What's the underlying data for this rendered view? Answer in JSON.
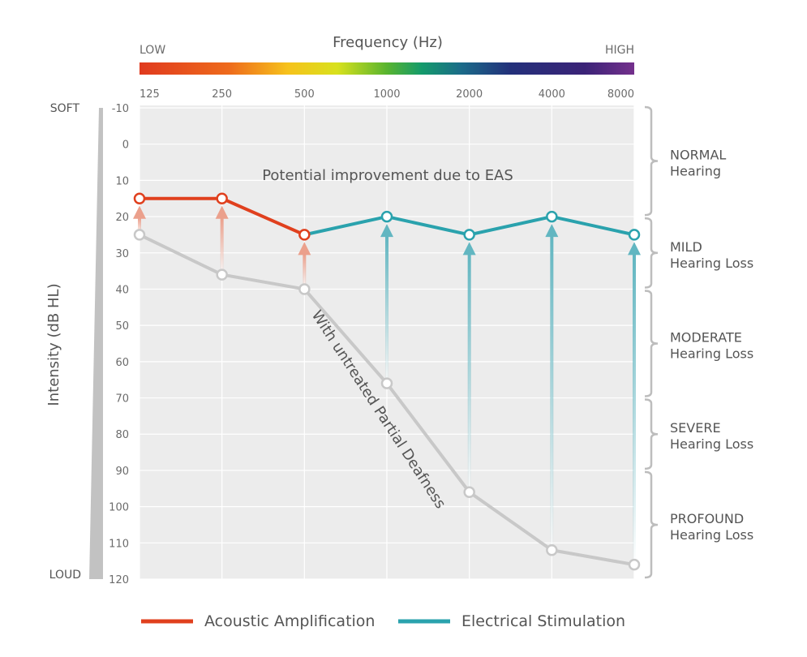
{
  "chart_data": {
    "type": "line",
    "title": "Frequency (Hz)",
    "frequency_bar": {
      "low_label": "LOW",
      "high_label": "HIGH"
    },
    "x_categories": [
      "125",
      "250",
      "500",
      "1000",
      "2000",
      "4000",
      "8000"
    ],
    "y_ticks": [
      "-10",
      "0",
      "10",
      "20",
      "30",
      "40",
      "50",
      "60",
      "70",
      "80",
      "90",
      "100",
      "110",
      "120"
    ],
    "ylim": [
      -10,
      120
    ],
    "y_inverted": true,
    "ylabel": "Intensity (dB HL)",
    "y_soft_label": "SOFT",
    "y_loud_label": "LOUD",
    "grid": true,
    "series": [
      {
        "name": "With untreated Partial Deafness",
        "color": "#c8c8c8",
        "values": [
          25,
          36,
          40,
          66,
          96,
          112,
          116
        ]
      },
      {
        "name": "Acoustic Amplification",
        "color": "#e0401e",
        "arrow_color": "#eba08c",
        "indices": [
          0,
          1,
          2
        ],
        "values": [
          15,
          15,
          25
        ]
      },
      {
        "name": "Electrical Stimulation",
        "color": "#2aa2ad",
        "arrow_color": "#62b6c1",
        "indices": [
          2,
          3,
          4,
          5,
          6
        ],
        "values": [
          25,
          20,
          25,
          20,
          25
        ]
      }
    ],
    "annotations": {
      "improvement": "Potential improvement due to EAS",
      "untreated": "With untreated Partial Deafness"
    },
    "hearing_bands": [
      {
        "name": "NORMAL",
        "sub": "Hearing",
        "from": -10,
        "to": 20
      },
      {
        "name": "MILD",
        "sub": "Hearing Loss",
        "from": 20,
        "to": 40
      },
      {
        "name": "MODERATE",
        "sub": "Hearing Loss",
        "from": 40,
        "to": 70
      },
      {
        "name": "SEVERE",
        "sub": "Hearing Loss",
        "from": 70,
        "to": 90
      },
      {
        "name": "PROFOUND",
        "sub": "Hearing Loss",
        "from": 90,
        "to": 120
      }
    ],
    "legend": [
      "Acoustic Amplification",
      "Electrical Stimulation"
    ],
    "legend_placement": "bottom"
  }
}
